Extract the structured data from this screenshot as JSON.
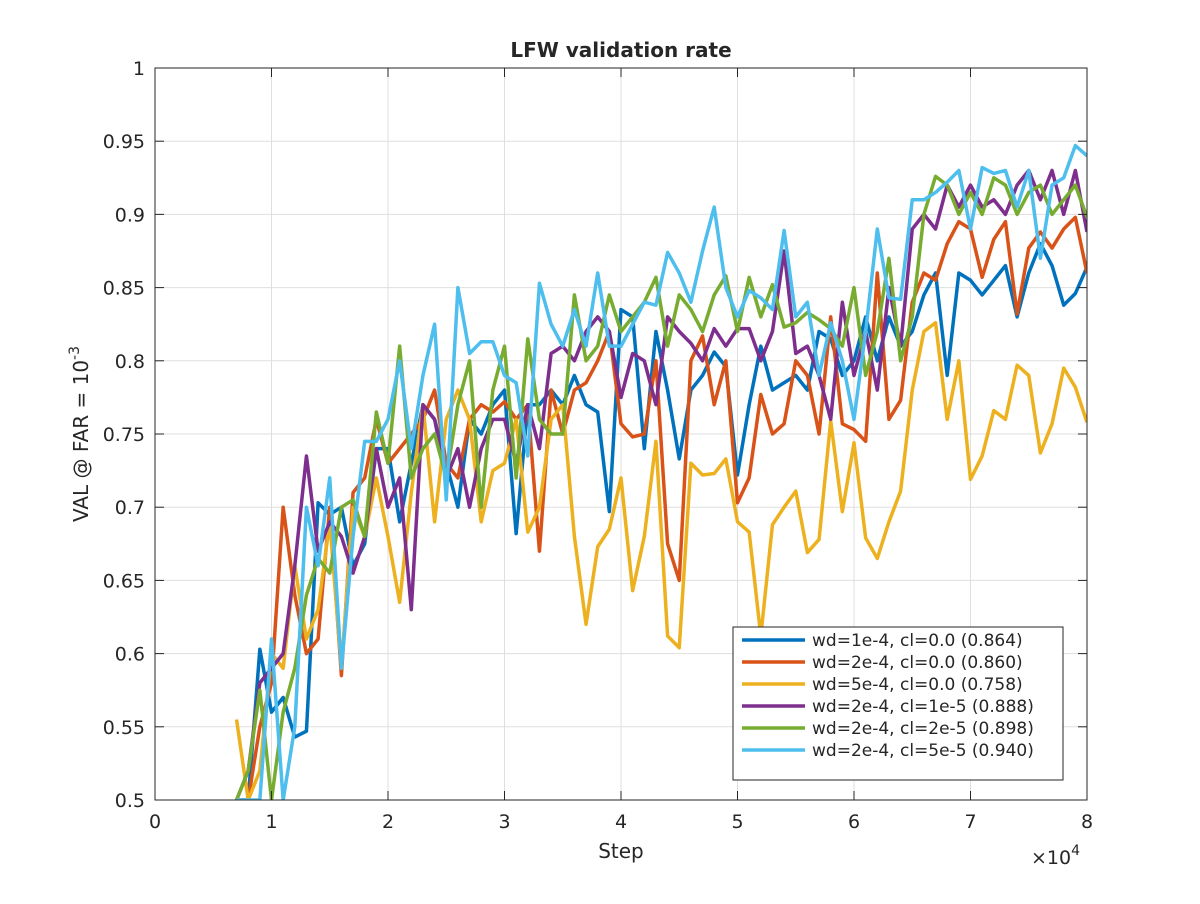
{
  "chart_data": {
    "type": "line",
    "title": "LFW validation rate",
    "xlabel": "Step",
    "ylabel": "VAL @ FAR = 10",
    "ylabel_sup": "-3",
    "x_multiplier": "×10",
    "x_multiplier_exp": "4",
    "xlim": [
      0,
      8
    ],
    "xticks": [
      0,
      1,
      2,
      3,
      4,
      5,
      6,
      7,
      8
    ],
    "ylim": [
      0.5,
      1
    ],
    "yticks": [
      0.5,
      0.55,
      0.6,
      0.65,
      0.7,
      0.75,
      0.8,
      0.85,
      0.9,
      0.95,
      1
    ],
    "grid": true,
    "legend_position": "lower right",
    "x": [
      0.7,
      0.8,
      0.9,
      1.0,
      1.1,
      1.2,
      1.3,
      1.4,
      1.5,
      1.6,
      1.7,
      1.8,
      1.9,
      2.0,
      2.1,
      2.2,
      2.3,
      2.4,
      2.5,
      2.6,
      2.7,
      2.8,
      2.9,
      3.0,
      3.1,
      3.2,
      3.3,
      3.4,
      3.5,
      3.6,
      3.7,
      3.8,
      3.9,
      4.0,
      4.1,
      4.2,
      4.3,
      4.4,
      4.5,
      4.6,
      4.7,
      4.8,
      4.9,
      5.0,
      5.1,
      5.2,
      5.3,
      5.4,
      5.5,
      5.6,
      5.7,
      5.8,
      5.9,
      6.0,
      6.1,
      6.2,
      6.3,
      6.4,
      6.5,
      6.6,
      6.7,
      6.8,
      6.9,
      7.0,
      7.1,
      7.2,
      7.3,
      7.4,
      7.5,
      7.6,
      7.7,
      7.8,
      7.9,
      8.0
    ],
    "series": [
      {
        "name": "wd=1e-4, cl=0.0 (0.864)",
        "color": "#0072bd",
        "values": [
          0.5,
          0.5,
          0.603,
          0.56,
          0.57,
          0.543,
          0.547,
          0.703,
          0.695,
          0.7,
          0.66,
          0.675,
          0.74,
          0.74,
          0.69,
          0.73,
          0.77,
          0.76,
          0.73,
          0.7,
          0.76,
          0.75,
          0.77,
          0.78,
          0.682,
          0.77,
          0.77,
          0.78,
          0.77,
          0.79,
          0.77,
          0.765,
          0.697,
          0.835,
          0.83,
          0.74,
          0.82,
          0.78,
          0.733,
          0.78,
          0.79,
          0.806,
          0.796,
          0.722,
          0.77,
          0.81,
          0.78,
          0.785,
          0.79,
          0.78,
          0.82,
          0.815,
          0.79,
          0.8,
          0.83,
          0.8,
          0.83,
          0.81,
          0.82,
          0.845,
          0.86,
          0.79,
          0.86,
          0.855,
          0.845,
          0.855,
          0.865,
          0.83,
          0.86,
          0.88,
          0.865,
          0.838,
          0.846,
          0.864
        ]
      },
      {
        "name": "wd=2e-4, cl=0.0 (0.860)",
        "color": "#d95319",
        "values": [
          0.5,
          0.5,
          0.55,
          0.58,
          0.7,
          0.64,
          0.6,
          0.61,
          0.7,
          0.585,
          0.71,
          0.72,
          0.76,
          0.73,
          0.74,
          0.75,
          0.76,
          0.78,
          0.73,
          0.72,
          0.76,
          0.77,
          0.765,
          0.772,
          0.76,
          0.77,
          0.67,
          0.78,
          0.75,
          0.78,
          0.785,
          0.8,
          0.82,
          0.757,
          0.748,
          0.75,
          0.8,
          0.675,
          0.65,
          0.8,
          0.817,
          0.77,
          0.8,
          0.703,
          0.72,
          0.777,
          0.75,
          0.757,
          0.8,
          0.79,
          0.75,
          0.83,
          0.757,
          0.753,
          0.745,
          0.86,
          0.76,
          0.773,
          0.84,
          0.86,
          0.855,
          0.88,
          0.895,
          0.89,
          0.857,
          0.883,
          0.895,
          0.832,
          0.877,
          0.888,
          0.877,
          0.89,
          0.898,
          0.86
        ]
      },
      {
        "name": "wd=5e-4, cl=0.0 (0.758)",
        "color": "#edb120",
        "values": [
          0.555,
          0.5,
          0.52,
          0.6,
          0.59,
          0.66,
          0.61,
          0.63,
          0.69,
          0.59,
          0.7,
          0.68,
          0.72,
          0.68,
          0.635,
          0.71,
          0.77,
          0.69,
          0.76,
          0.78,
          0.76,
          0.69,
          0.725,
          0.73,
          0.76,
          0.683,
          0.7,
          0.76,
          0.77,
          0.68,
          0.62,
          0.673,
          0.685,
          0.72,
          0.643,
          0.68,
          0.745,
          0.612,
          0.604,
          0.73,
          0.722,
          0.723,
          0.733,
          0.69,
          0.683,
          0.612,
          0.688,
          0.7,
          0.711,
          0.669,
          0.678,
          0.759,
          0.697,
          0.744,
          0.679,
          0.665,
          0.69,
          0.711,
          0.78,
          0.82,
          0.826,
          0.76,
          0.8,
          0.719,
          0.735,
          0.766,
          0.76,
          0.797,
          0.79,
          0.737,
          0.757,
          0.795,
          0.782,
          0.758
        ]
      },
      {
        "name": "wd=2e-4, cl=1e-5 (0.888)",
        "color": "#7e2f8e",
        "values": [
          0.5,
          0.52,
          0.58,
          0.59,
          0.6,
          0.66,
          0.735,
          0.67,
          0.69,
          0.68,
          0.655,
          0.68,
          0.74,
          0.7,
          0.72,
          0.63,
          0.77,
          0.76,
          0.72,
          0.74,
          0.7,
          0.74,
          0.76,
          0.76,
          0.73,
          0.77,
          0.74,
          0.805,
          0.81,
          0.8,
          0.82,
          0.83,
          0.82,
          0.775,
          0.805,
          0.8,
          0.77,
          0.83,
          0.82,
          0.812,
          0.8,
          0.822,
          0.81,
          0.822,
          0.822,
          0.8,
          0.82,
          0.875,
          0.805,
          0.81,
          0.79,
          0.76,
          0.84,
          0.79,
          0.82,
          0.78,
          0.85,
          0.81,
          0.89,
          0.9,
          0.89,
          0.92,
          0.905,
          0.92,
          0.905,
          0.91,
          0.9,
          0.92,
          0.93,
          0.91,
          0.93,
          0.9,
          0.93,
          0.888
        ]
      },
      {
        "name": "wd=2e-4, cl=2e-5 (0.898)",
        "color": "#77ac30",
        "values": [
          0.5,
          0.52,
          0.575,
          0.5,
          0.56,
          0.59,
          0.64,
          0.665,
          0.655,
          0.7,
          0.705,
          0.68,
          0.765,
          0.73,
          0.81,
          0.72,
          0.74,
          0.75,
          0.72,
          0.77,
          0.8,
          0.7,
          0.78,
          0.81,
          0.72,
          0.815,
          0.76,
          0.75,
          0.75,
          0.845,
          0.8,
          0.81,
          0.845,
          0.82,
          0.83,
          0.84,
          0.857,
          0.81,
          0.845,
          0.835,
          0.82,
          0.845,
          0.858,
          0.82,
          0.857,
          0.83,
          0.852,
          0.823,
          0.826,
          0.833,
          0.828,
          0.822,
          0.81,
          0.85,
          0.79,
          0.82,
          0.87,
          0.8,
          0.83,
          0.9,
          0.926,
          0.92,
          0.9,
          0.915,
          0.9,
          0.925,
          0.92,
          0.9,
          0.915,
          0.92,
          0.9,
          0.91,
          0.92,
          0.898
        ]
      },
      {
        "name": "wd=2e-4, cl=5e-5 (0.940)",
        "color": "#4dbeee",
        "values": [
          0.5,
          0.5,
          0.5,
          0.61,
          0.5,
          0.55,
          0.7,
          0.66,
          0.72,
          0.59,
          0.68,
          0.745,
          0.745,
          0.76,
          0.8,
          0.74,
          0.79,
          0.825,
          0.705,
          0.85,
          0.805,
          0.813,
          0.813,
          0.79,
          0.785,
          0.735,
          0.853,
          0.825,
          0.81,
          0.835,
          0.81,
          0.86,
          0.81,
          0.81,
          0.825,
          0.84,
          0.838,
          0.874,
          0.86,
          0.84,
          0.875,
          0.905,
          0.85,
          0.83,
          0.848,
          0.843,
          0.835,
          0.889,
          0.83,
          0.84,
          0.79,
          0.826,
          0.8,
          0.76,
          0.82,
          0.89,
          0.843,
          0.842,
          0.91,
          0.91,
          0.915,
          0.922,
          0.93,
          0.89,
          0.932,
          0.928,
          0.93,
          0.905,
          0.93,
          0.87,
          0.92,
          0.925,
          0.947,
          0.94
        ]
      }
    ]
  }
}
